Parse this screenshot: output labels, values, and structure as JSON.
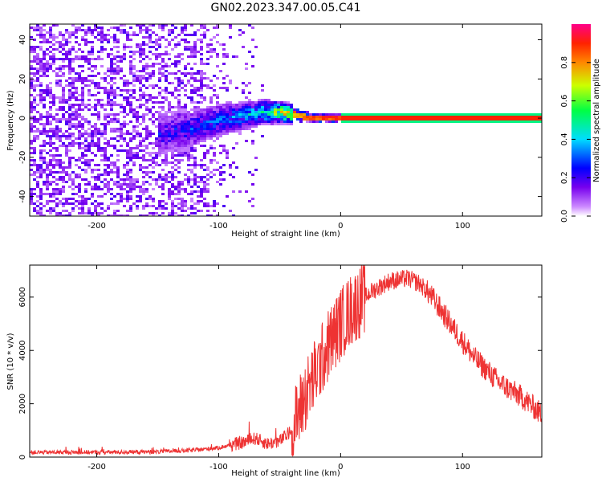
{
  "figure": {
    "title": "GN02.2023.347.00.05.C41"
  },
  "chart_data": [
    {
      "type": "heatmap",
      "title": "",
      "xlabel": "Height of straight line (km)",
      "ylabel": "Frequency (Hz)",
      "xlim": [
        -255,
        165
      ],
      "ylim": [
        -50,
        48
      ],
      "x_ticks": [
        -200,
        -100,
        0,
        100
      ],
      "y_ticks": [
        -40,
        -20,
        0,
        20,
        40
      ],
      "colorbar": {
        "label": "Normalized spectral amplitude",
        "range": [
          0,
          1
        ],
        "ticks": [
          "0.0",
          "0.2",
          "0.4",
          "0.6",
          "0.8"
        ],
        "colormap": [
          "#ffffff",
          "#cc88ff",
          "#7700ee",
          "#0000ff",
          "#00ddff",
          "#00ff44",
          "#ccff00",
          "#ff8800",
          "#ff2200",
          "#ff0088"
        ]
      },
      "carrier_track": [
        {
          "x": -145,
          "y": -8,
          "amp": 0.25
        },
        {
          "x": -120,
          "y": -5,
          "amp": 0.3
        },
        {
          "x": -100,
          "y": -1,
          "amp": 0.35
        },
        {
          "x": -80,
          "y": 1,
          "amp": 0.4
        },
        {
          "x": -65,
          "y": 3,
          "amp": 0.5
        },
        {
          "x": -50,
          "y": 3,
          "amp": 0.75
        },
        {
          "x": -40,
          "y": 2,
          "amp": 0.85
        },
        {
          "x": -25,
          "y": 0,
          "amp": 0.9
        },
        {
          "x": -10,
          "y": 0,
          "amp": 0.95
        },
        {
          "x": 0,
          "y": 0,
          "amp": 1.0
        },
        {
          "x": 165,
          "y": 0,
          "amp": 1.0
        }
      ]
    },
    {
      "type": "line",
      "title": "",
      "xlabel": "Height of straight line (km)",
      "ylabel": "SNR (10 * v/v)",
      "xlim": [
        -255,
        165
      ],
      "ylim": [
        0,
        7200
      ],
      "x_ticks": [
        -200,
        -100,
        0,
        100
      ],
      "y_ticks": [
        0,
        2000,
        4000,
        6000
      ],
      "color": "#ee3333",
      "envelope": [
        {
          "x": -255,
          "y": 180
        },
        {
          "x": -200,
          "y": 180
        },
        {
          "x": -150,
          "y": 200
        },
        {
          "x": -120,
          "y": 260
        },
        {
          "x": -100,
          "y": 350
        },
        {
          "x": -80,
          "y": 550
        },
        {
          "x": -70,
          "y": 700
        },
        {
          "x": -60,
          "y": 500
        },
        {
          "x": -50,
          "y": 600
        },
        {
          "x": -40,
          "y": 1000
        },
        {
          "x": -30,
          "y": 2200
        },
        {
          "x": -20,
          "y": 3200
        },
        {
          "x": -10,
          "y": 4200
        },
        {
          "x": 0,
          "y": 5000
        },
        {
          "x": 10,
          "y": 5600
        },
        {
          "x": 25,
          "y": 6200
        },
        {
          "x": 40,
          "y": 6600
        },
        {
          "x": 55,
          "y": 6700
        },
        {
          "x": 65,
          "y": 6500
        },
        {
          "x": 75,
          "y": 6000
        },
        {
          "x": 90,
          "y": 5000
        },
        {
          "x": 110,
          "y": 3700
        },
        {
          "x": 130,
          "y": 2800
        },
        {
          "x": 150,
          "y": 2200
        },
        {
          "x": 165,
          "y": 1600
        }
      ]
    }
  ]
}
